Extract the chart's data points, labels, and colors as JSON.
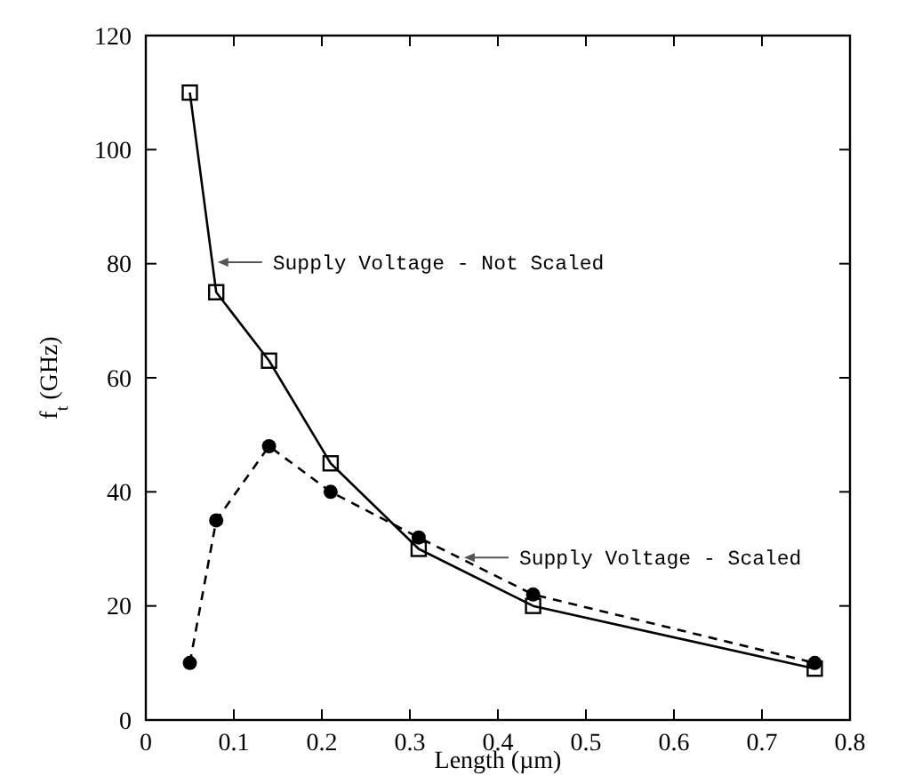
{
  "chart_data": {
    "type": "line",
    "xlabel": "Length (µm)",
    "ylabel": "f$_{t}$ (GHz)",
    "x": [
      0.05,
      0.08,
      0.14,
      0.21,
      0.31,
      0.44,
      0.76
    ],
    "xlim": [
      0,
      0.8
    ],
    "xticks": [
      0,
      0.1,
      0.2,
      0.3,
      0.4,
      0.5,
      0.6,
      0.7,
      0.8
    ],
    "ylim": [
      0,
      120
    ],
    "yticks": [
      0,
      20,
      40,
      60,
      80,
      100,
      120
    ],
    "grid": false,
    "legend": false,
    "series": [
      {
        "name": "Supply Voltage - Not Scaled",
        "color": "#000000",
        "marker": "square",
        "line_style": "solid",
        "values": [
          110,
          75,
          63,
          45,
          30,
          20,
          9
        ]
      },
      {
        "name": "Supply Voltage - Scaled",
        "color": "#000000",
        "marker": "circle",
        "line_style": "dashed",
        "values": [
          10,
          35,
          48,
          40,
          32,
          22,
          10
        ]
      }
    ]
  }
}
